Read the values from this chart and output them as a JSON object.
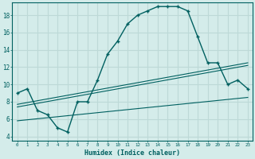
{
  "xlabel": "Humidex (Indice chaleur)",
  "ylabel": "",
  "bg_color": "#d4ecea",
  "grid_color": "#bdd9d7",
  "line_color": "#006060",
  "xlim": [
    -0.5,
    23.5
  ],
  "ylim": [
    3.5,
    19.5
  ],
  "xticks": [
    0,
    1,
    2,
    3,
    4,
    5,
    6,
    7,
    8,
    9,
    10,
    11,
    12,
    13,
    14,
    15,
    16,
    17,
    18,
    19,
    20,
    21,
    22,
    23
  ],
  "yticks": [
    4,
    6,
    8,
    10,
    12,
    14,
    16,
    18
  ],
  "main_x": [
    0,
    1,
    2,
    3,
    4,
    5,
    6,
    7,
    8,
    9,
    10,
    11,
    12,
    13,
    14,
    15,
    16,
    17,
    18,
    19,
    20,
    21,
    22,
    23
  ],
  "main_y": [
    9.0,
    9.5,
    7.0,
    6.5,
    5.0,
    4.5,
    8.0,
    8.0,
    10.5,
    13.5,
    15.0,
    17.0,
    18.0,
    18.5,
    19.0,
    19.0,
    19.0,
    18.5,
    15.5,
    12.5,
    12.5,
    10.0,
    10.5,
    9.5
  ],
  "line1_x": [
    0,
    23
  ],
  "line1_y": [
    7.4,
    12.2
  ],
  "line2_x": [
    0,
    23
  ],
  "line2_y": [
    7.7,
    12.5
  ],
  "line3_x": [
    0,
    23
  ],
  "line3_y": [
    5.8,
    8.5
  ]
}
